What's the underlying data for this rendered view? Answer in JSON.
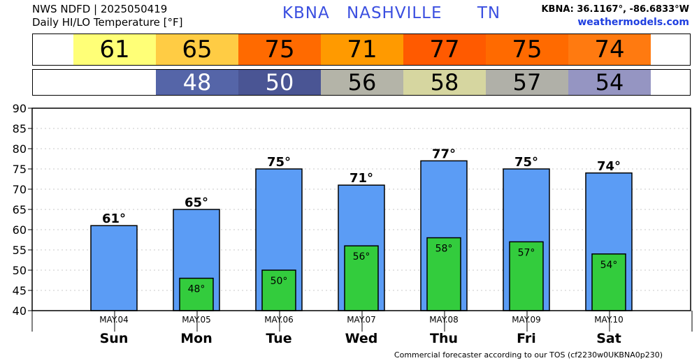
{
  "header": {
    "line1": "NWS NDFD | 2025050419",
    "line2": "Daily HI/LO Temperature [°F]",
    "station": "KBNA",
    "city": "NASHVILLE",
    "state": "TN",
    "coords": "KBNA: 36.1167°, -86.6833°W",
    "site": "weathermodels.com"
  },
  "strips": {
    "hi": [
      {
        "value": "61",
        "color": "#ffff77"
      },
      {
        "value": "65",
        "color": "#ffcc44"
      },
      {
        "value": "75",
        "color": "#ff6a00"
      },
      {
        "value": "71",
        "color": "#ff9a00"
      },
      {
        "value": "77",
        "color": "#ff5a00"
      },
      {
        "value": "75",
        "color": "#ff6a00"
      },
      {
        "value": "74",
        "color": "#ff7a10"
      }
    ],
    "lo": [
      {
        "value": "",
        "color": "#ffffff"
      },
      {
        "value": "48",
        "color": "#5565a8",
        "light": true
      },
      {
        "value": "50",
        "color": "#4a5594",
        "light": true
      },
      {
        "value": "56",
        "color": "#b4b4a8"
      },
      {
        "value": "58",
        "color": "#d6d6a0"
      },
      {
        "value": "57",
        "color": "#b0b0a8"
      },
      {
        "value": "54",
        "color": "#9595c2"
      }
    ]
  },
  "chart_data": {
    "type": "bar",
    "categories": [
      "Sun",
      "Mon",
      "Tue",
      "Wed",
      "Thu",
      "Fri",
      "Sat"
    ],
    "dates": [
      "MAY.04",
      "MAY.05",
      "MAY.06",
      "MAY.07",
      "MAY.08",
      "MAY.09",
      "MAY.10"
    ],
    "series": [
      {
        "values": [
          61,
          65,
          75,
          71,
          77,
          75,
          74
        ],
        "labels": [
          "61°",
          "65°",
          "75°",
          "71°",
          "77°",
          "75°",
          "74°"
        ],
        "color": "#5b9cf5"
      },
      {
        "values": [
          null,
          48,
          50,
          56,
          58,
          57,
          54
        ],
        "labels": [
          "",
          "48°",
          "50°",
          "56°",
          "58°",
          "57°",
          "54°"
        ],
        "color": "#33cc3d"
      }
    ],
    "ylim": [
      40,
      90
    ],
    "yticks": [
      40,
      45,
      50,
      55,
      60,
      65,
      70,
      75,
      80,
      85,
      90
    ],
    "grid": true
  },
  "footer": "Commercial forecaster according to our TOS (cf2230w0UKBNA0p230)"
}
